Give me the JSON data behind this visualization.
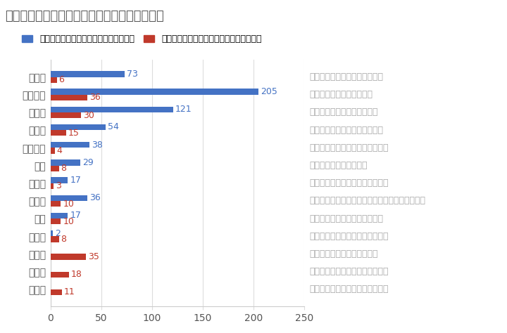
{
  "title": "【各自治体】都の制度導入前後の利用組数比較",
  "legend_blue": "東京都パートナーシップ宣誓制度導入前",
  "legend_red": "東京都パートナーシップ宣誓制度導入以降",
  "districts": [
    "渋谷区",
    "世田谷区",
    "中野区",
    "豊島区",
    "江戸川区",
    "港区",
    "文京区",
    "足立区",
    "北区",
    "荒川区",
    "杉並区",
    "墨田区",
    "板橋区"
  ],
  "blue_values": [
    73,
    205,
    121,
    54,
    38,
    29,
    17,
    36,
    17,
    2,
    0,
    0,
    0
  ],
  "red_values": [
    6,
    36,
    30,
    15,
    4,
    8,
    3,
    10,
    10,
    8,
    35,
    18,
    11
  ],
  "annotations": [
    "渋谷区パートナーシップ証明書",
    "同性パートナーシップ宣誓",
    "中野区パートナーシップ宣誓",
    "豊島区のパートナーシップ制度",
    "同性パートナー関係申出書受領証",
    "みなとマリアージュ制度",
    "文京区パートナーシップ宣誓制度",
    "足立区パートナーシップ・ファミリーシップ制度",
    "北区パートナーシップ宣誓制度",
    "荒川区同性パートナーシップ制度",
    "杉並区パートナーシップ制度",
    "墨田区パートナーシップ宣誓制度",
    "板橋区パートナーシップ宣誓制度"
  ],
  "color_blue": "#4472c4",
  "color_red": "#c0392b",
  "xlim": [
    0,
    250
  ],
  "xticks": [
    0,
    50,
    100,
    150,
    200,
    250
  ],
  "background_color": "#ffffff",
  "grid_color": "#dddddd",
  "title_fontsize": 13,
  "tick_fontsize": 10,
  "annotation_fontsize": 9,
  "bar_label_fontsize": 9,
  "annotation_color": "#aaaaaa",
  "title_color": "#555555",
  "ytick_color": "#555555"
}
